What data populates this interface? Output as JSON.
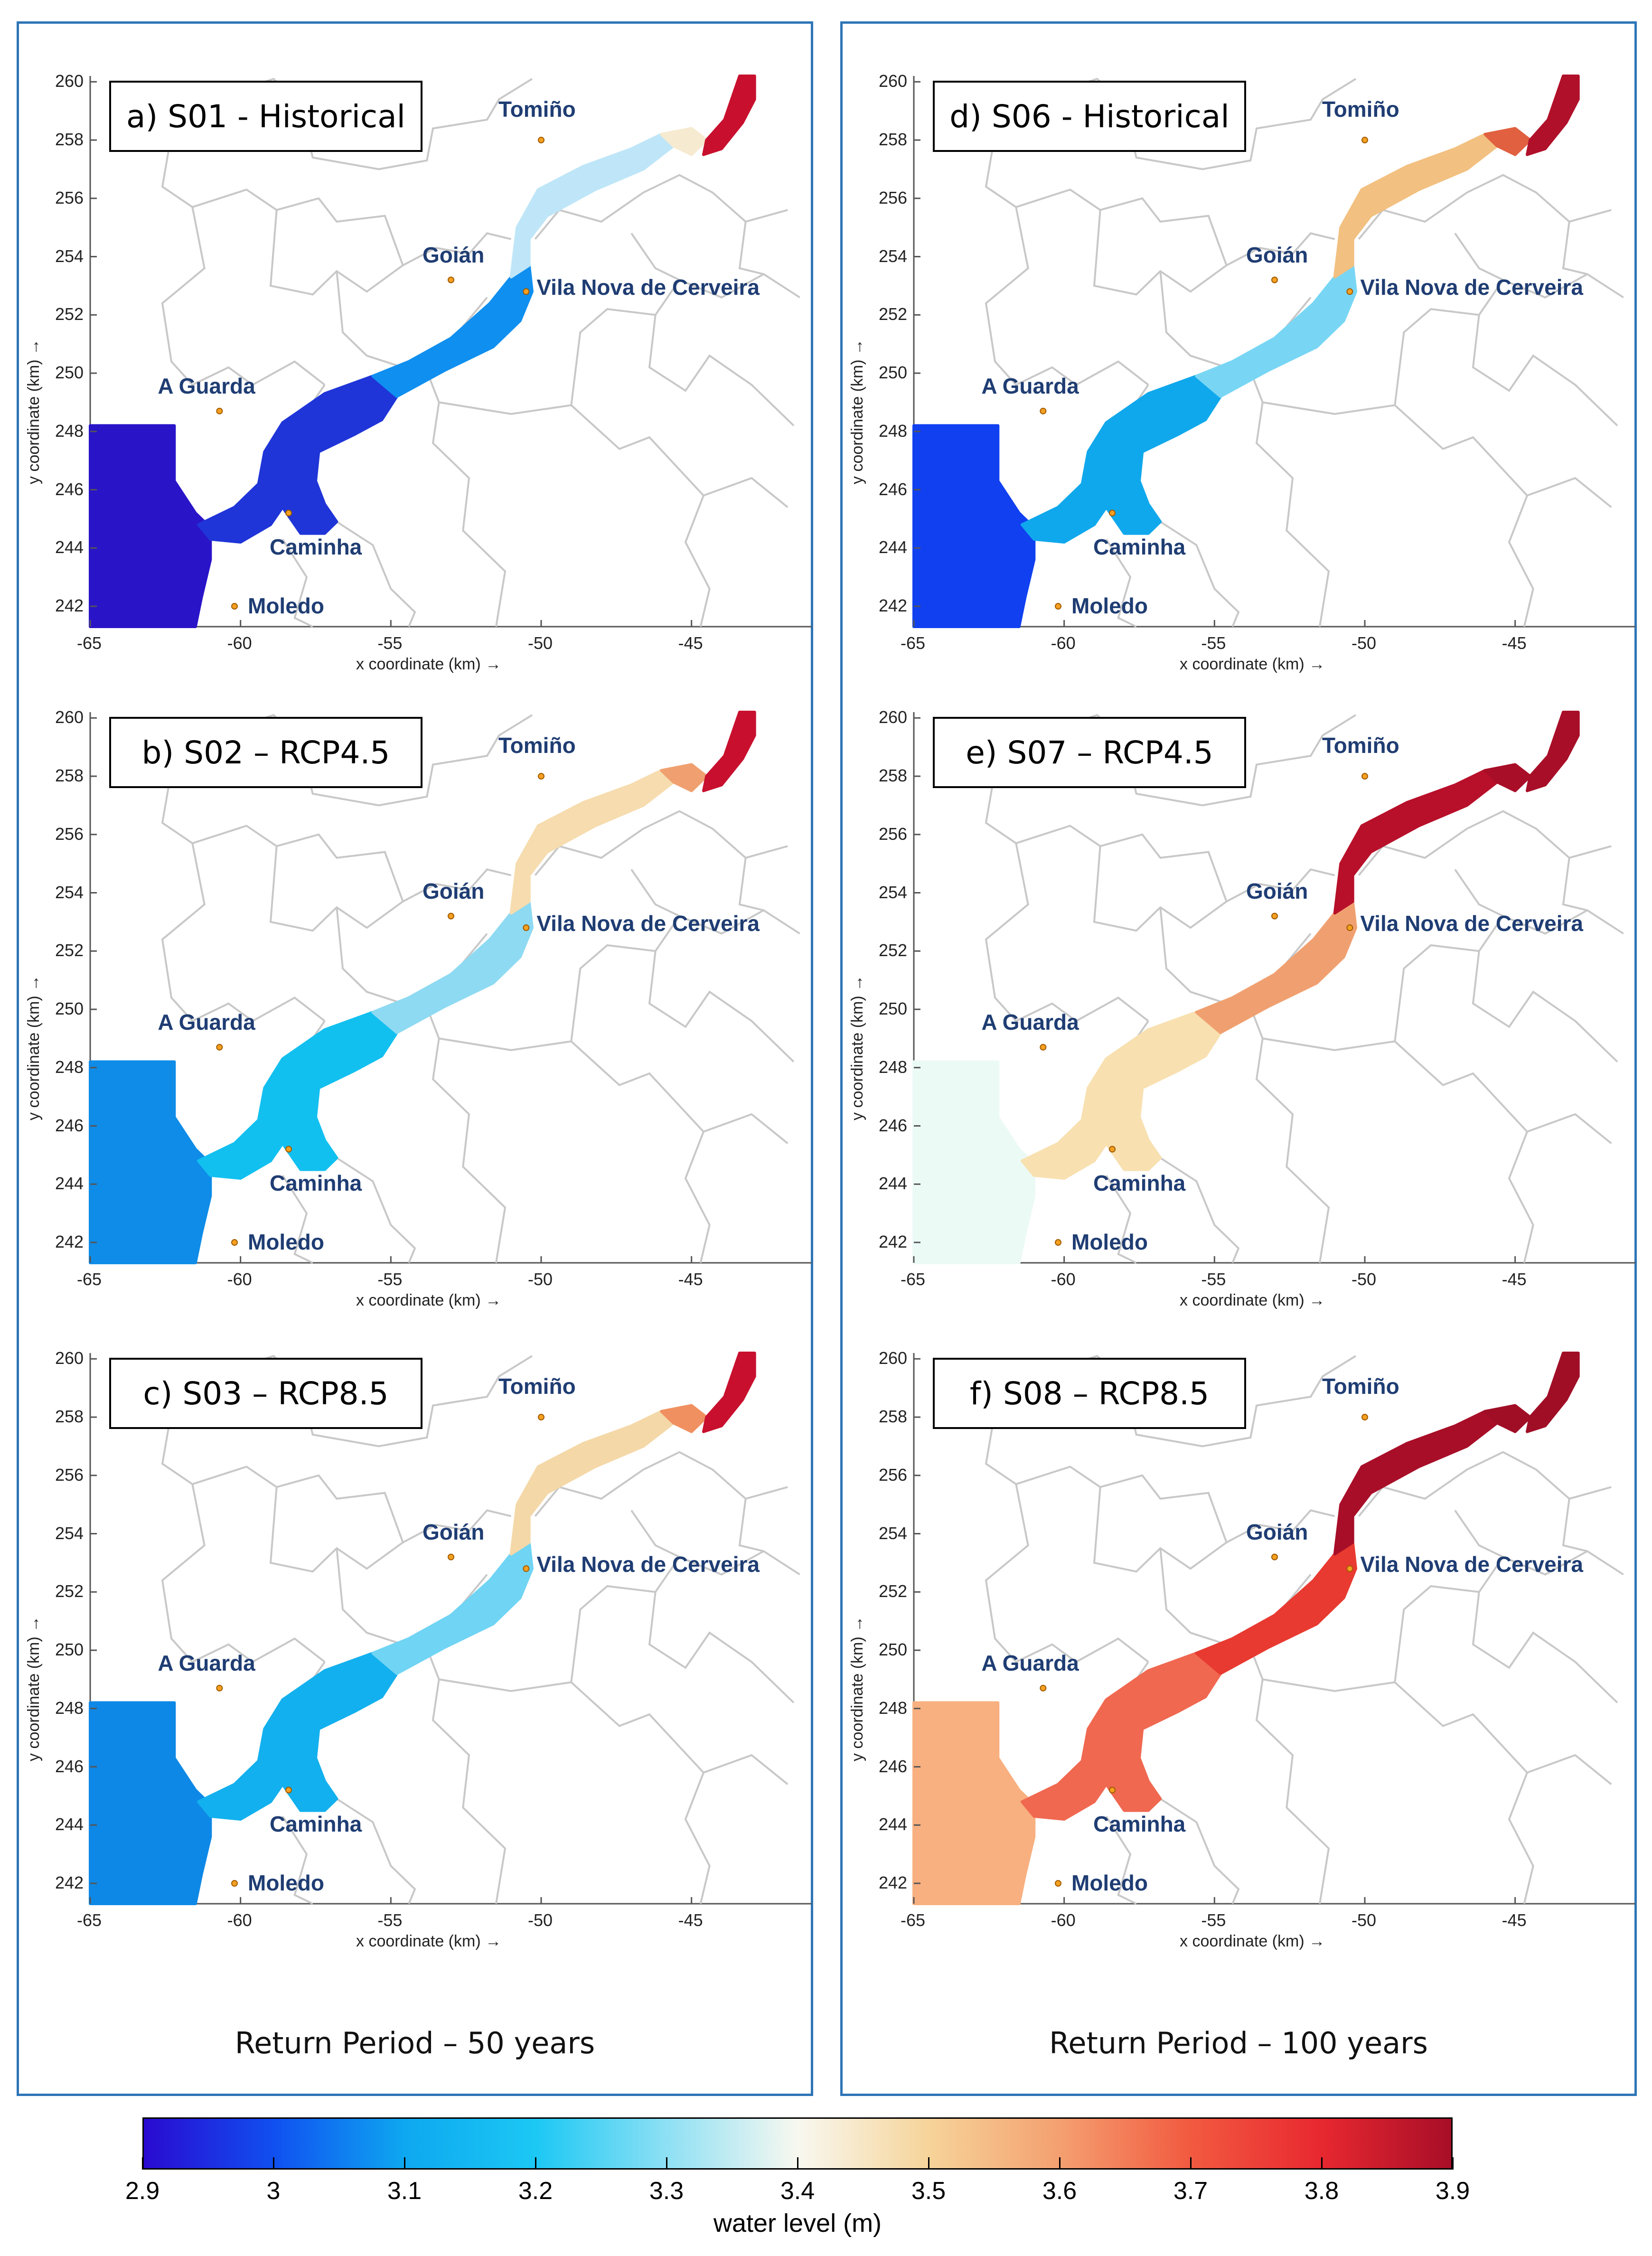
{
  "groups": [
    {
      "caption": "Return Period – 50 years"
    },
    {
      "caption": "Return Period – 100 years"
    }
  ],
  "axes": {
    "x_title": "x coordinate (km) →",
    "y_title": "y coordinate (km) →",
    "x_ticks": [
      "-65",
      "-60",
      "-55",
      "-50",
      "-45"
    ],
    "y_ticks": [
      "242",
      "244",
      "246",
      "248",
      "250",
      "252",
      "254",
      "256",
      "258",
      "260"
    ],
    "x_range_km": [
      -65,
      -41
    ],
    "y_range_km": [
      241.3,
      260.2
    ]
  },
  "towns": [
    {
      "name": "Tomiño",
      "x_km": -50.0,
      "y_km": 258.0
    },
    {
      "name": "Goián",
      "x_km": -53.0,
      "y_km": 253.2
    },
    {
      "name": "Vila Nova de Cerveira",
      "x_km": -50.5,
      "y_km": 252.8
    },
    {
      "name": "A Guarda",
      "x_km": -60.7,
      "y_km": 248.7
    },
    {
      "name": "Caminha",
      "x_km": -58.4,
      "y_km": 245.2
    },
    {
      "name": "Moledo",
      "x_km": -60.2,
      "y_km": 242.0
    }
  ],
  "panels": [
    {
      "label": "a) S01 - Historical",
      "colors": {
        "sea": "#2a14c8",
        "lower": "#1f35d8",
        "mid": "#0f8ff0",
        "upper": "#bfe6f8",
        "head": "#f6ead0",
        "top": "#c8102e"
      }
    },
    {
      "label": "b) S02 – RCP4.5",
      "colors": {
        "sea": "#0e8ce8",
        "lower": "#12c0f0",
        "mid": "#8edaf2",
        "upper": "#f6dcae",
        "head": "#f0a070",
        "top": "#c8102e"
      }
    },
    {
      "label": "c) S03 – RCP8.5",
      "colors": {
        "sea": "#0e88e6",
        "lower": "#12b0ee",
        "mid": "#70d4f4",
        "upper": "#f4d8a8",
        "head": "#f09060",
        "top": "#c8102e"
      }
    },
    {
      "label": "d) S06 - Historical",
      "colors": {
        "sea": "#1040f0",
        "lower": "#10a8ec",
        "mid": "#78d6f4",
        "upper": "#f2c080",
        "head": "#e06040",
        "top": "#b0102a"
      }
    },
    {
      "label": "e) S07 – RCP4.5",
      "colors": {
        "sea": "#ecfaf6",
        "lower": "#f8e0b0",
        "mid": "#f0a070",
        "upper": "#b8102a",
        "head": "#a80e28",
        "top": "#a80e28"
      }
    },
    {
      "label": "f) S08 – RCP8.5",
      "colors": {
        "sea": "#f8b080",
        "lower": "#f06850",
        "mid": "#e83a30",
        "upper": "#a80e28",
        "head": "#a00e26",
        "top": "#a00e26"
      }
    }
  ],
  "colorbar": {
    "title": "water level (m)",
    "min": 2.9,
    "max": 3.9,
    "ticks": [
      "2.9",
      "3",
      "3.1",
      "3.2",
      "3.3",
      "3.4",
      "3.5",
      "3.6",
      "3.7",
      "3.8",
      "3.9"
    ],
    "stops": [
      "#2a0ad0",
      "#1050f0",
      "#0ea8f0",
      "#1cc8f4",
      "#8ee0f4",
      "#f8f8f0",
      "#f6d49a",
      "#f4a070",
      "#f25a40",
      "#e82830",
      "#a80e28"
    ]
  }
}
